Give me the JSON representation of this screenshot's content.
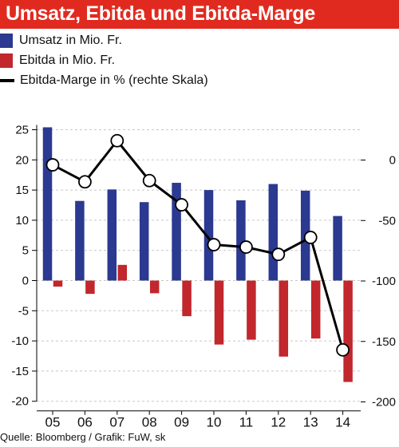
{
  "title": "Umsatz, Ebitda und Ebitda-Marge",
  "legend": {
    "revenue": "Umsatz in Mio. Fr.",
    "ebitda": "Ebitda in Mio. Fr.",
    "margin": "Ebitda-Marge in % (rechte Skala)"
  },
  "source": "Quelle: Bloomberg / Grafik: FuW, sk",
  "colors": {
    "title_bg": "#e12a1f",
    "revenue": "#2b3990",
    "ebitda": "#c1272d",
    "margin": "#000000"
  },
  "chart_data": {
    "type": "bar",
    "categories": [
      "05",
      "06",
      "07",
      "08",
      "09",
      "10",
      "11",
      "12",
      "13",
      "14"
    ],
    "series": [
      {
        "name": "Umsatz in Mio. Fr.",
        "axis": "left",
        "values": [
          25.4,
          13.2,
          15.1,
          13.0,
          16.2,
          15.0,
          13.3,
          16.0,
          14.9,
          10.7
        ]
      },
      {
        "name": "Ebitda in Mio. Fr.",
        "axis": "left",
        "values": [
          -1.0,
          -2.2,
          2.6,
          -2.1,
          -5.9,
          -10.6,
          -9.8,
          -12.6,
          -9.6,
          -16.8
        ]
      },
      {
        "name": "Ebitda-Marge in % (rechte Skala)",
        "axis": "right",
        "type": "line",
        "values": [
          -4,
          -18,
          16,
          -17,
          -37,
          -70,
          -72,
          -78,
          -64,
          -157
        ]
      }
    ],
    "yleft": {
      "ticks": [
        25,
        20,
        15,
        10,
        5,
        0,
        -5,
        -10,
        -15,
        -20
      ],
      "ylim": [
        -20,
        25
      ]
    },
    "yright": {
      "ticks": [
        0,
        -50,
        -100,
        -150,
        -200
      ],
      "ylim": [
        -200,
        26
      ]
    },
    "grid": "dashed horizontal"
  }
}
